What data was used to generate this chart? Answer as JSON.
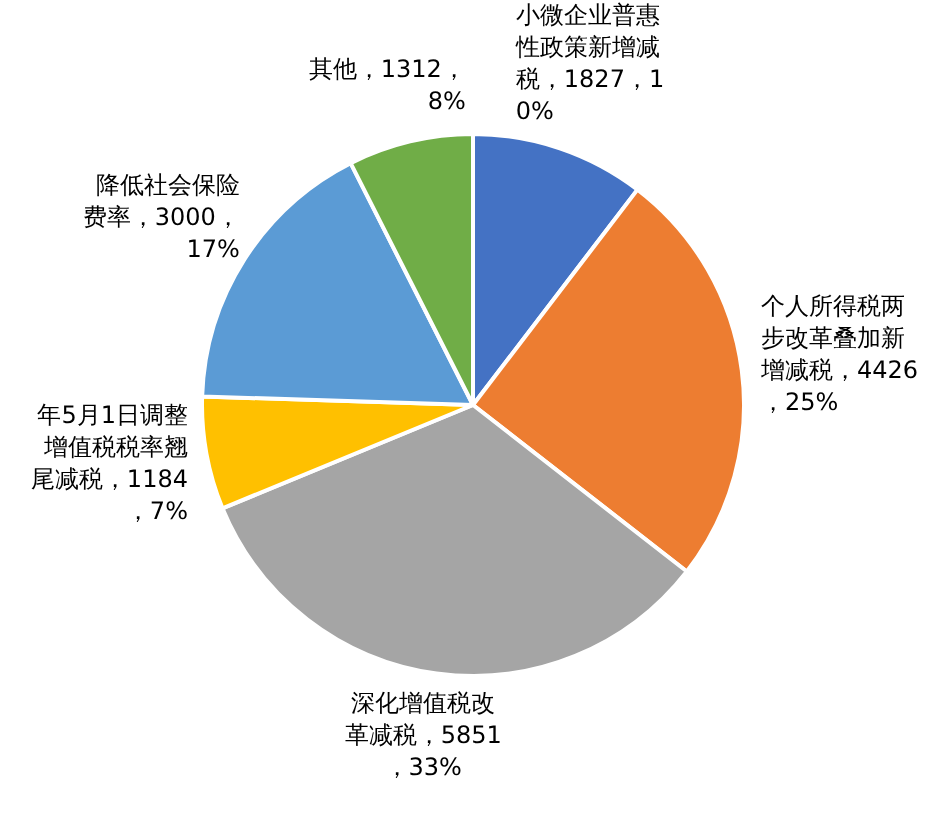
{
  "chart_data": {
    "type": "pie",
    "categories": [
      "小微企业普惠性政策新增减税",
      "个人所得税两步改革叠加新增减税",
      "深化增值税改革减税",
      "年5月1日调整增值税税率翘尾减税",
      "降低社会保险费率",
      "其他"
    ],
    "values": [
      1827,
      4426,
      5851,
      1184,
      3000,
      1312
    ],
    "value_labels": [
      "1827，10%",
      "4426，25%",
      "5851，33%",
      "1184，7%",
      "3000，17%",
      "1312，8%"
    ],
    "colors": [
      "#4472c4",
      "#ed7d31",
      "#a5a5a5",
      "#ffc000",
      "#5b9bd5",
      "#70ad47"
    ]
  }
}
